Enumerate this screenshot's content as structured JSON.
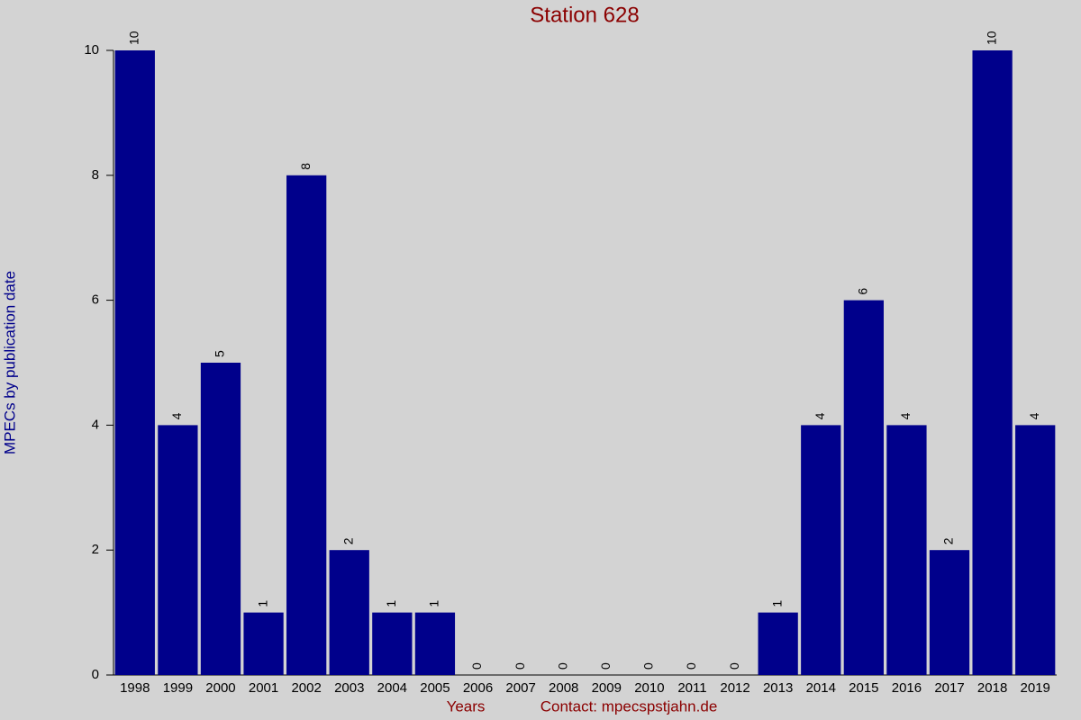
{
  "chart_data": {
    "type": "bar",
    "title": "Station 628",
    "x_label": "Years",
    "y_label": "MPECs by publication date",
    "footer": "Contact: mpecspstjahn.de",
    "categories": [
      "1998",
      "1999",
      "2000",
      "2001",
      "2002",
      "2003",
      "2004",
      "2005",
      "2006",
      "2007",
      "2008",
      "2009",
      "2010",
      "2011",
      "2012",
      "2013",
      "2014",
      "2015",
      "2016",
      "2017",
      "2018",
      "2019"
    ],
    "values": [
      10,
      4,
      5,
      1,
      8,
      2,
      1,
      1,
      0,
      0,
      0,
      0,
      0,
      0,
      0,
      1,
      4,
      6,
      4,
      2,
      10,
      4
    ],
    "color": "#00008b",
    "ylim": [
      0,
      10
    ],
    "yticks": [
      0,
      2,
      4,
      6,
      8,
      10
    ]
  }
}
